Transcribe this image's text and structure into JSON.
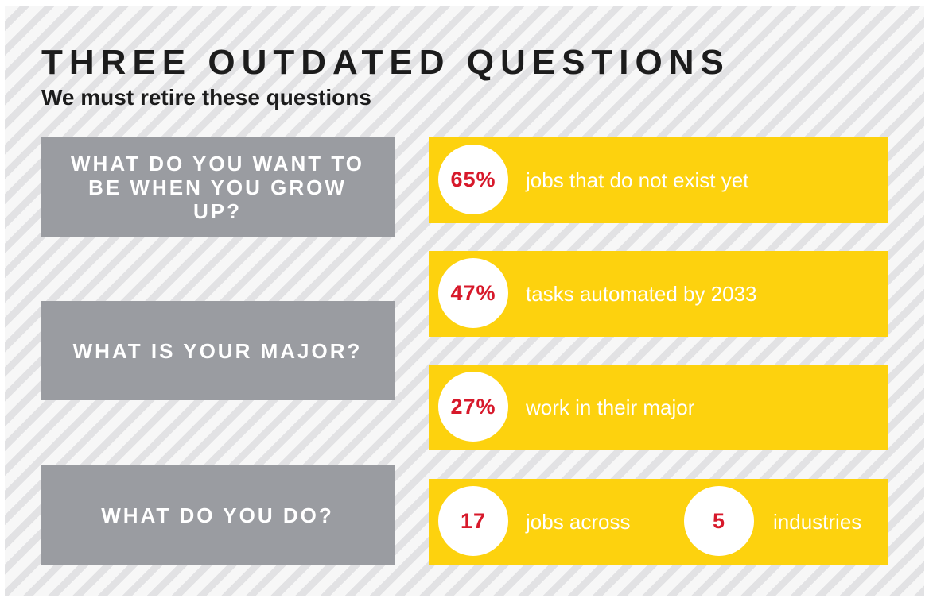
{
  "title": "THREE OUTDATED QUESTIONS",
  "subtitle": "We must retire these questions",
  "colors": {
    "question_box": "#9a9ca1",
    "stat_box": "#fdd20e",
    "stat_number": "#d7192b",
    "title_text": "#1c1c1c"
  },
  "questions": [
    {
      "text": "WHAT DO YOU WANT TO BE WHEN YOU GROW UP?"
    },
    {
      "text": "WHAT IS YOUR MAJOR?"
    },
    {
      "text": "WHAT DO YOU DO?"
    }
  ],
  "stats": [
    {
      "value": "65%",
      "label": "jobs that do not exist yet"
    },
    {
      "value": "47%",
      "label": "tasks automated by 2033"
    },
    {
      "value": "27%",
      "label": "work in their major"
    },
    {
      "value": "17",
      "label": "jobs across",
      "value2": "5",
      "label2": "industries"
    }
  ]
}
